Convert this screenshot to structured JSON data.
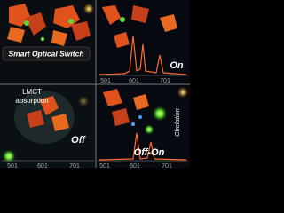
{
  "switch_label": "Smart Optical Switch",
  "top_right": {
    "state": "On",
    "axis_labels": [
      "501",
      "601",
      "701"
    ]
  },
  "bottom_left": {
    "note": [
      "LMCT",
      "absorption"
    ],
    "state": "Off",
    "axis_labels": [
      "501",
      "601",
      "701"
    ]
  },
  "bottom_right": {
    "process": "Chelation",
    "state": "Off-On",
    "axis_labels": [
      "501",
      "601",
      "701"
    ]
  }
}
